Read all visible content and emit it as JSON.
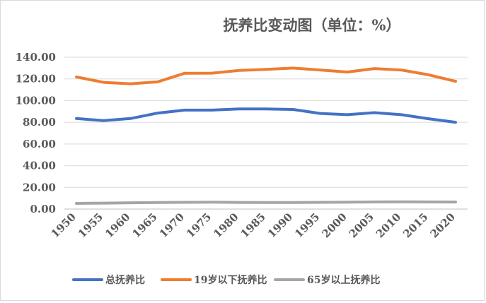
{
  "chart_data": {
    "type": "line",
    "title": "抚养比变动图（单位：%）",
    "xlabel": "",
    "ylabel": "",
    "x": [
      "1950",
      "1955",
      "1960",
      "1965",
      "1970",
      "1975",
      "1980",
      "1985",
      "1990",
      "1995",
      "2000",
      "2005",
      "2010",
      "2015",
      "2020"
    ],
    "y_ticks": [
      "0.00",
      "20.00",
      "40.00",
      "60.00",
      "80.00",
      "100.00",
      "120.00",
      "140.00"
    ],
    "ylim": [
      0,
      140
    ],
    "grid": true,
    "legend_position": "bottom",
    "series": [
      {
        "name": "总抚养比",
        "color": "#4472c4",
        "values": [
          83.5,
          81.5,
          83.5,
          88.5,
          91.2,
          91.2,
          92.3,
          92.3,
          91.8,
          88.2,
          87.0,
          88.9,
          87.0,
          83.3,
          80.0
        ]
      },
      {
        "name": "19岁以下抚养比",
        "color": "#ed7d31",
        "values": [
          121.8,
          116.8,
          115.5,
          117.3,
          125.2,
          125.3,
          127.8,
          128.8,
          130.0,
          128.2,
          126.3,
          129.5,
          128.2,
          123.8,
          117.8
        ]
      },
      {
        "name": "65岁以上抚养比",
        "color": "#a5a5a5",
        "values": [
          5.2,
          5.5,
          5.8,
          6.0,
          6.2,
          6.3,
          6.1,
          6.0,
          6.0,
          6.2,
          6.4,
          6.6,
          6.7,
          6.6,
          6.5
        ]
      }
    ]
  }
}
